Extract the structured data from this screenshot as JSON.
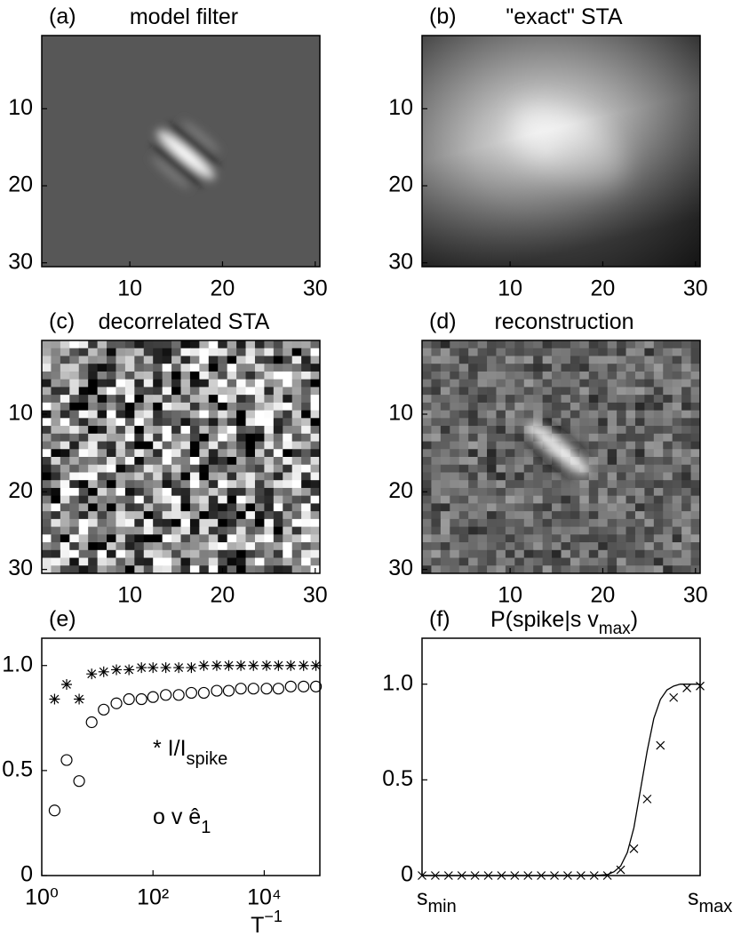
{
  "chart_data": [
    {
      "type": "heatmap",
      "label": "(a)",
      "title": "model filter",
      "xlim": [
        0.5,
        30.5
      ],
      "ylim": [
        30.5,
        0.5
      ],
      "xticks": [
        10,
        20,
        30
      ],
      "yticks": [
        10,
        20,
        30
      ]
    },
    {
      "type": "heatmap",
      "label": "(b)",
      "title": "\"exact\" STA",
      "xlim": [
        0.5,
        30.5
      ],
      "ylim": [
        30.5,
        0.5
      ],
      "xticks": [
        10,
        20,
        30
      ],
      "yticks": [
        10,
        20,
        30
      ]
    },
    {
      "type": "heatmap",
      "label": "(c)",
      "title": "decorrelated STA",
      "xlim": [
        0.5,
        30.5
      ],
      "ylim": [
        30.5,
        0.5
      ],
      "xticks": [
        10,
        20,
        30
      ],
      "yticks": [
        10,
        20,
        30
      ]
    },
    {
      "type": "heatmap",
      "label": "(d)",
      "title": "reconstruction",
      "xlim": [
        0.5,
        30.5
      ],
      "ylim": [
        30.5,
        0.5
      ],
      "xticks": [
        10,
        20,
        30
      ],
      "yticks": [
        10,
        20,
        30
      ]
    },
    {
      "type": "scatter",
      "label": "(e)",
      "xlog": true,
      "x": [
        1.7,
        2.8,
        4.7,
        7.9,
        13,
        22,
        37,
        62,
        100,
        170,
        290,
        490,
        820,
        1400,
        2300,
        3800,
        6400,
        11000,
        18000,
        30000,
        51000,
        85000
      ],
      "series": [
        {
          "marker": "*",
          "color": "#000",
          "values": [
            0.84,
            0.91,
            0.84,
            0.96,
            0.97,
            0.98,
            0.98,
            0.99,
            0.99,
            0.99,
            0.99,
            0.99,
            1.0,
            1.0,
            1.0,
            1.0,
            1.0,
            1.0,
            1.0,
            1.0,
            1.0,
            1.0
          ]
        },
        {
          "marker": "o",
          "color": "#000",
          "values": [
            0.31,
            0.55,
            0.45,
            0.73,
            0.79,
            0.82,
            0.84,
            0.84,
            0.85,
            0.86,
            0.86,
            0.87,
            0.87,
            0.88,
            0.88,
            0.89,
            0.89,
            0.89,
            0.89,
            0.9,
            0.9,
            0.9
          ]
        }
      ],
      "annotations": [
        {
          "text": "* I/I",
          "sub": "spike"
        },
        {
          "text": "o v  ê",
          "sub": "1"
        }
      ],
      "x_label": "T",
      "x_label_sup": "−1",
      "xlim": [
        1,
        100000
      ],
      "ylim": [
        0,
        1.13
      ],
      "xticks": [
        {
          "value": 1,
          "label": "10⁰"
        },
        {
          "value": 100,
          "label": "10²"
        },
        {
          "value": 10000,
          "label": "10⁴"
        }
      ],
      "yticks": [
        0,
        0.5,
        {
          "value": 1,
          "label": "1.0"
        }
      ]
    },
    {
      "type": "line",
      "label": "(f)",
      "title": "P(spike|s  v",
      "title_sub": "max",
      "title_end": ")",
      "x": [
        0,
        1,
        2,
        3,
        4,
        5,
        6,
        7,
        8,
        9,
        10,
        11,
        12,
        13,
        14,
        15,
        16,
        17,
        18,
        19,
        20,
        21
      ],
      "values": [
        0,
        0,
        0,
        0,
        0,
        0,
        0,
        0,
        0,
        0,
        0,
        0,
        0,
        0,
        0,
        0.03,
        0.14,
        0.4,
        0.68,
        0.93,
        0.98,
        0.99
      ],
      "fit_x": [
        0,
        13,
        14,
        14.5,
        15,
        15.5,
        16,
        16.5,
        17,
        17.5,
        18,
        18.5,
        19,
        19.5,
        20,
        21
      ],
      "fit_values": [
        0,
        0,
        0.005,
        0.02,
        0.05,
        0.12,
        0.25,
        0.45,
        0.65,
        0.82,
        0.92,
        0.97,
        0.99,
        1.0,
        1.0,
        1.0
      ],
      "color": "#000",
      "xlim": [
        0,
        21
      ],
      "ylim": [
        0,
        1.24
      ],
      "xticks": [
        {
          "value": 0,
          "label": "s",
          "sub": "min"
        },
        {
          "value": 21,
          "label": "s",
          "sub": "max"
        }
      ],
      "yticks": [
        0,
        0.5,
        {
          "value": 1,
          "label": "1.0"
        }
      ]
    }
  ]
}
